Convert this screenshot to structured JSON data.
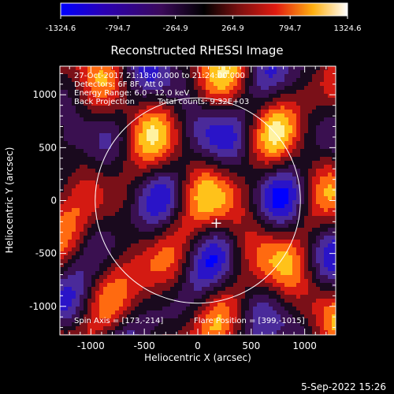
{
  "chart_data": {
    "type": "heatmap",
    "title": "Reconstructed RHESSI Image",
    "xlabel": "Heliocentric X (arcsec)",
    "ylabel": "Heliocentric Y (arcsec)",
    "xlim": [
      -1290,
      1290
    ],
    "ylim": [
      -1270,
      1270
    ],
    "x_ticks": [
      -1000,
      -500,
      0,
      500,
      1000
    ],
    "y_ticks": [
      -1000,
      -500,
      0,
      500,
      1000
    ],
    "x_tick_labels": [
      "-1000",
      "-500",
      "0",
      "500",
      "1000"
    ],
    "y_tick_labels": [
      "-1000",
      "-500",
      "0",
      "500",
      "1000"
    ],
    "colorbar": {
      "min": -1324.6,
      "max": 1324.6,
      "tick_values": [
        -1324.6,
        -794.7,
        -264.9,
        264.9,
        794.7,
        1324.6
      ],
      "tick_labels": [
        "-1324.6",
        "-794.7",
        "-264.9",
        "264.9",
        "794.7",
        "1324.6"
      ]
    },
    "annotations": {
      "line1": "27-Oct-2017 21:18:00.000 to 21:24:00.000",
      "line2": "Detectors: 6F 8F, Att 0",
      "line3": "Energy Range: 6.0 - 12.0 keV",
      "line4a": "Back Projection",
      "line4b": "Total counts: 9.32E+03",
      "spin": "Spin Axis = [173,-214]",
      "flare": "Flare Position = [399,-1015]"
    },
    "solar_limb_radius_arcsec": 960,
    "marker_position": [
      173,
      -214
    ],
    "grid": false
  },
  "footer": {
    "date": "5-Sep-2022 15:26"
  },
  "colors": {
    "background": "#000000",
    "low": "#0000ff",
    "mid": "#000000",
    "high": "#ffffff"
  }
}
